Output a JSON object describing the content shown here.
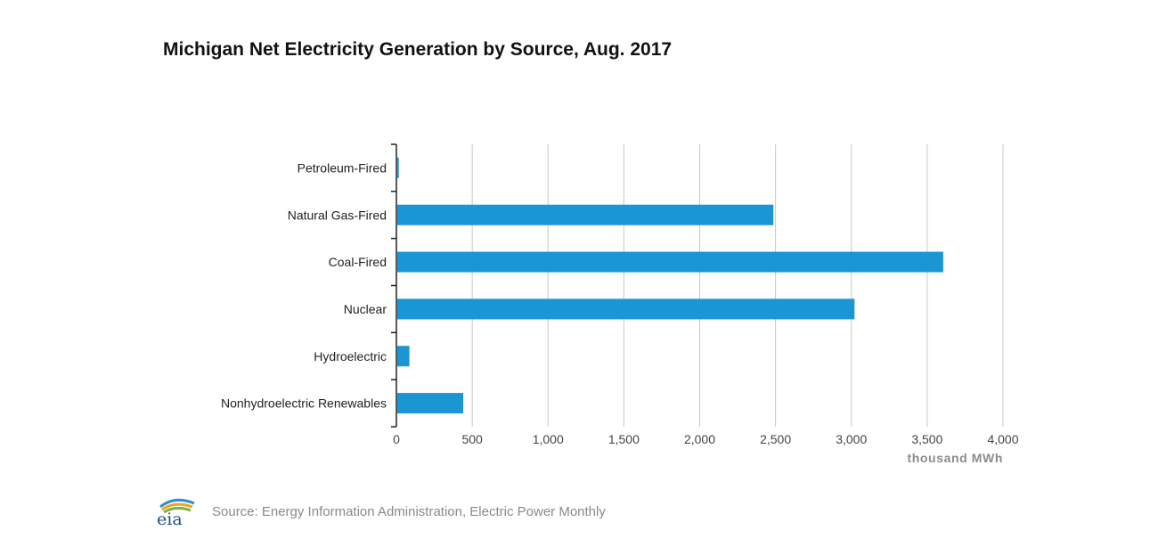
{
  "chart_data": {
    "type": "bar",
    "orientation": "horizontal",
    "title": "Michigan Net Electricity Generation by Source, Aug. 2017",
    "categories": [
      "Petroleum-Fired",
      "Natural Gas-Fired",
      "Coal-Fired",
      "Nuclear",
      "Hydroelectric",
      "Nonhydroelectric Renewables"
    ],
    "values": [
      10,
      2480,
      3600,
      3015,
      80,
      435
    ],
    "xlabel": "thousand MWh",
    "ylabel": "",
    "xlim": [
      0,
      4000
    ],
    "xticks": [
      0,
      500,
      1000,
      1500,
      2000,
      2500,
      3000,
      3500,
      4000
    ],
    "xtick_labels": [
      "0",
      "500",
      "1,000",
      "1,500",
      "2,000",
      "2,500",
      "3,000",
      "3,500",
      "4,000"
    ],
    "grid": "vertical",
    "bar_color": "#1a96d4"
  },
  "footer": {
    "logo_text": "eia",
    "source": "Source: Energy Information Administration, Electric Power Monthly"
  }
}
